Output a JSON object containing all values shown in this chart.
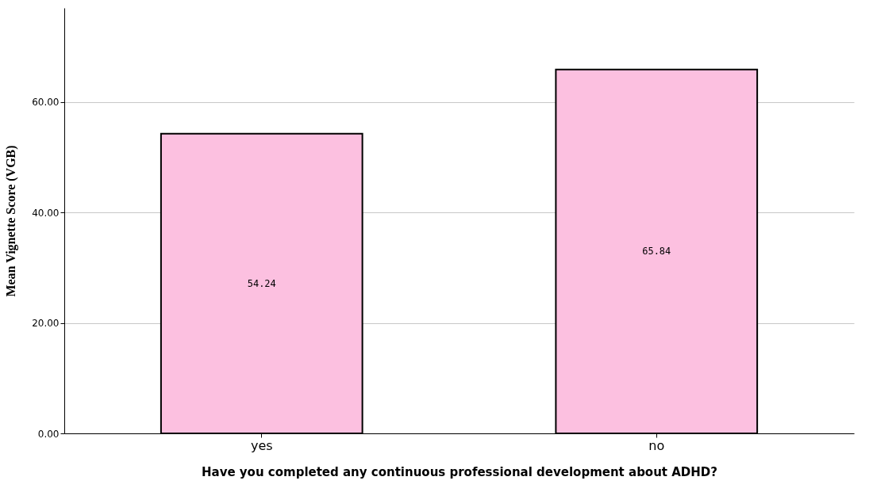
{
  "chart_data": {
    "type": "bar",
    "xlabel": "Have you completed any continuous professional development about ADHD?",
    "ylabel": "Mean Vignette Score (VGB)",
    "categories": [
      "yes",
      "no"
    ],
    "values": [
      54.24,
      65.84
    ],
    "color": "#fcc0e0",
    "ylim": [
      0,
      77
    ],
    "yticks": [
      {
        "value": 0,
        "label": "0.00"
      },
      {
        "value": 20,
        "label": "20.00"
      },
      {
        "value": 40,
        "label": "40.00"
      },
      {
        "value": 60,
        "label": "60.00"
      }
    ],
    "grid": "y",
    "data_labels": true
  }
}
